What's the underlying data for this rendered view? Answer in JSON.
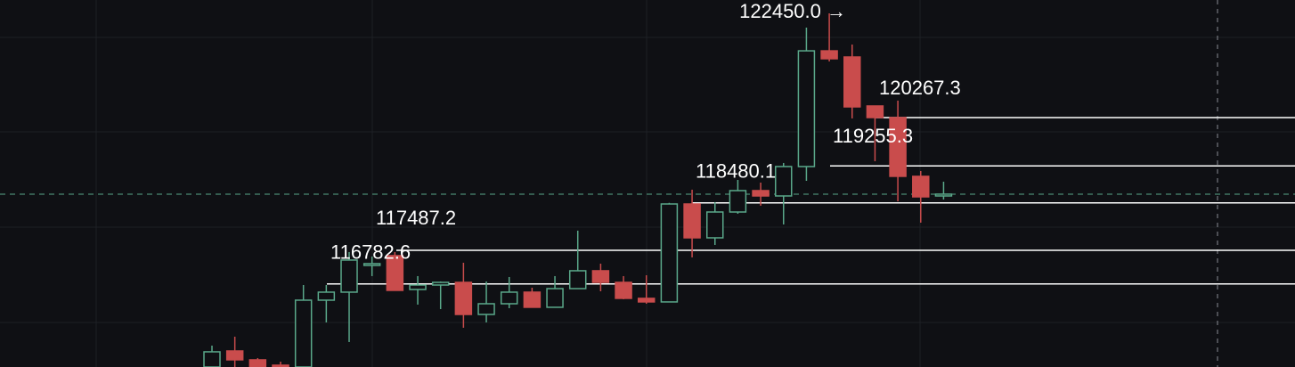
{
  "chart_data": {
    "type": "candlestick",
    "ylim": [
      115042,
      122730
    ],
    "up_color": "#5aa88a",
    "down_color": "#c94c4c",
    "open": [
      115042,
      115378,
      115192,
      115080,
      115042,
      116442,
      116610,
      117170,
      117375,
      116666,
      116759,
      116815,
      116143,
      116367,
      116610,
      116293,
      116684,
      117058,
      116815,
      116480,
      116405,
      118457,
      117748,
      118289,
      118737,
      118625,
      119241,
      121665,
      121536,
      120510,
      120267,
      119036,
      118625
    ],
    "high": [
      115490,
      115677,
      115229,
      115154,
      116759,
      116759,
      117450,
      117356,
      117450,
      116946,
      116834,
      117226,
      116834,
      116927,
      116703,
      116946,
      117898,
      117207,
      116946,
      116964,
      118480,
      118756,
      118495,
      118961,
      118905,
      119316,
      122152,
      122450,
      121797,
      120510,
      120622,
      119148,
      118924
    ],
    "low": [
      115042,
      115042,
      115042,
      115042,
      115042,
      115976,
      115565,
      116946,
      116647,
      116349,
      116255,
      115864,
      115976,
      116274,
      116293,
      116293,
      116684,
      116628,
      116461,
      116367,
      116405,
      117338,
      117599,
      118252,
      118420,
      118028,
      118942,
      121443,
      120249,
      119353,
      118513,
      118066,
      118550
    ],
    "close": [
      115360,
      115192,
      115042,
      115060,
      116442,
      116610,
      117282,
      117207,
      116647,
      116759,
      116815,
      116143,
      116367,
      116610,
      116293,
      116684,
      117058,
      116815,
      116480,
      116405,
      118457,
      117748,
      118289,
      118737,
      118625,
      119241,
      121665,
      121499,
      120491,
      120267,
      119036,
      118606,
      118663
    ],
    "levels": [
      {
        "value": 122450.0,
        "label": "122450.0 →"
      },
      {
        "value": 120267.3,
        "label": "120267.3"
      },
      {
        "value": 119255.3,
        "label": "119255.3"
      },
      {
        "value": 118480.1,
        "label": "118480.1"
      },
      {
        "value": 117487.2,
        "label": "117487.2"
      },
      {
        "value": 116782.6,
        "label": "116782.6"
      }
    ],
    "last_price": 118663
  }
}
